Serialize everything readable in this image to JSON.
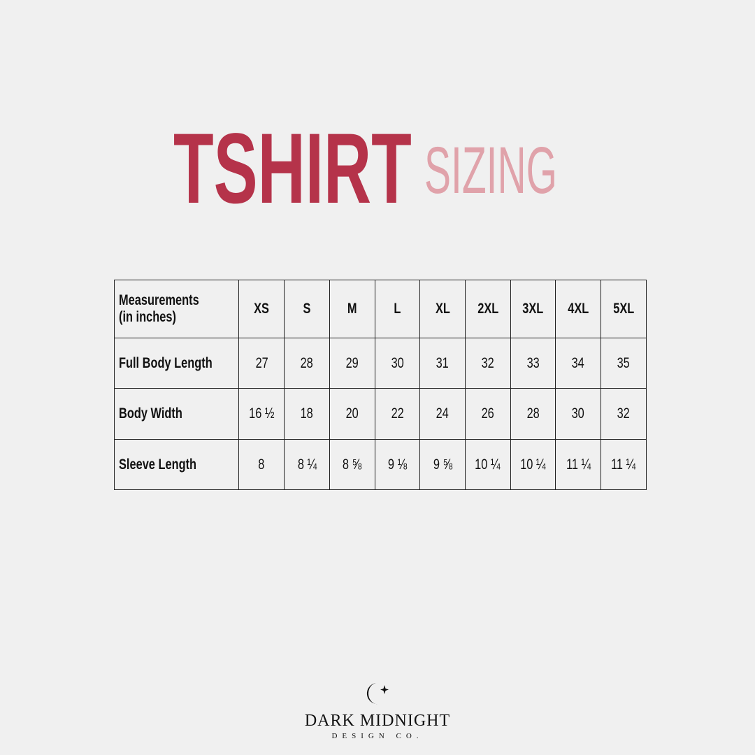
{
  "title": {
    "main": "TSHIRT",
    "secondary": "SIZING",
    "main_color": "#b5334a",
    "secondary_color": "#e0a2aa"
  },
  "table": {
    "header": {
      "label_line1": "Measurements",
      "label_line2": "(in inches)",
      "sizes": [
        "XS",
        "S",
        "M",
        "L",
        "XL",
        "2XL",
        "3XL",
        "4XL",
        "5XL"
      ]
    },
    "rows": [
      {
        "label": "Full Body Length",
        "values": [
          "27",
          "28",
          "29",
          "30",
          "31",
          "32",
          "33",
          "34",
          "35"
        ]
      },
      {
        "label": "Body Width",
        "values": [
          "16 ½",
          "18",
          "20",
          "22",
          "24",
          "26",
          "28",
          "30",
          "32"
        ]
      },
      {
        "label": "Sleeve Length",
        "values": [
          "8",
          "8 ¼",
          "8 ⅝",
          "9 ⅛",
          "9 ⅝",
          "10 ¼",
          "10 ¼",
          "11 ¼",
          "11 ¼"
        ]
      }
    ]
  },
  "logo": {
    "icon": "moon-star-icon",
    "brand": "DARK MIDNIGHT",
    "subtitle": "DESIGN CO."
  }
}
